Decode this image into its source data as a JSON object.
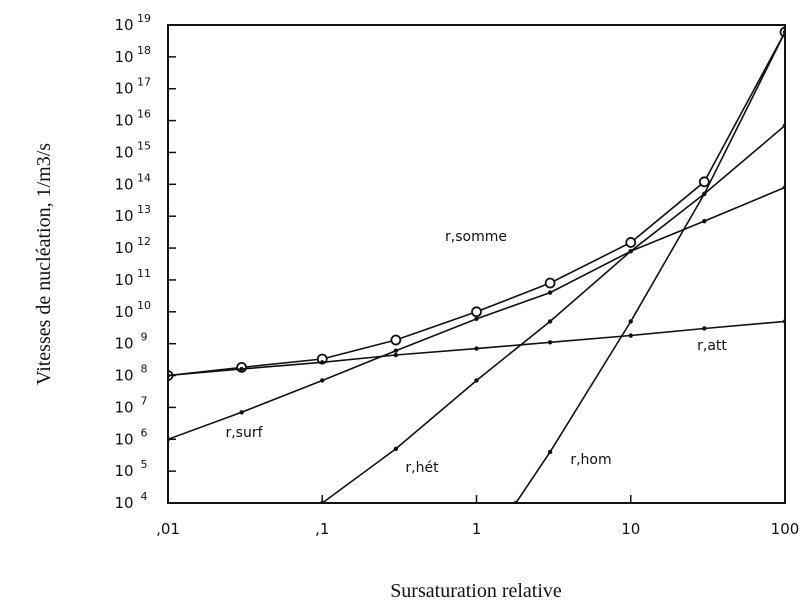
{
  "chart_data": {
    "type": "line",
    "title": "",
    "xlabel": "Sursaturation relative",
    "ylabel": "Vitesses de nucléation, 1/m3/s",
    "x_scale": "log",
    "y_scale": "log",
    "xlim": [
      0.01,
      100
    ],
    "ylim": [
      10000,
      1e+19
    ],
    "x_ticks": [
      0.01,
      0.1,
      1,
      10,
      100
    ],
    "x_tick_labels": [
      ",01",
      ",1",
      "1",
      "10",
      "100"
    ],
    "y_ticks": [
      4,
      5,
      6,
      7,
      8,
      9,
      10,
      11,
      12,
      13,
      14,
      15,
      16,
      17,
      18,
      19
    ],
    "y_tick_base": "10",
    "grid": false,
    "legend": "none",
    "series": [
      {
        "name": "r,somme",
        "marker": "open-circle",
        "x": [
          0.01,
          0.03,
          0.1,
          0.3,
          1,
          3,
          10,
          30,
          100
        ],
        "y": [
          100000000.0,
          180000000.0,
          330000000.0,
          1300000000.0,
          10000000000.0,
          80000000000.0,
          1500000000000.0,
          120000000000000.0,
          6e+18
        ]
      },
      {
        "name": "r,att",
        "marker": "dot",
        "x": [
          0.01,
          0.03,
          0.1,
          0.3,
          1,
          3,
          10,
          30,
          100
        ],
        "y": [
          100000000.0,
          160000000.0,
          260000000.0,
          440000000.0,
          700000000.0,
          1100000000.0,
          1800000000.0,
          3000000000.0,
          5000000000.0
        ]
      },
      {
        "name": "r,surf",
        "marker": "dot",
        "x": [
          0.01,
          0.03,
          0.1,
          0.3,
          1,
          3,
          10,
          30,
          100
        ],
        "y": [
          1000000.0,
          7000000.0,
          70000000.0,
          600000000.0,
          6000000000.0,
          40000000000.0,
          800000000000.0,
          7000000000000.0,
          80000000000000.0
        ]
      },
      {
        "name": "r,hét",
        "marker": "dot",
        "x": [
          0.1,
          0.3,
          1,
          3,
          10,
          30,
          100
        ],
        "y": [
          10000.0,
          500000.0,
          70000000.0,
          5000000000.0,
          800000000000.0,
          50000000000000.0,
          7000000000000000.0
        ]
      },
      {
        "name": "r,hom",
        "marker": "dot",
        "x": [
          1.8,
          3,
          10,
          30,
          100
        ],
        "y": [
          10000.0,
          400000.0,
          5000000000.0,
          50000000000000.0,
          6e+18
        ]
      }
    ]
  }
}
